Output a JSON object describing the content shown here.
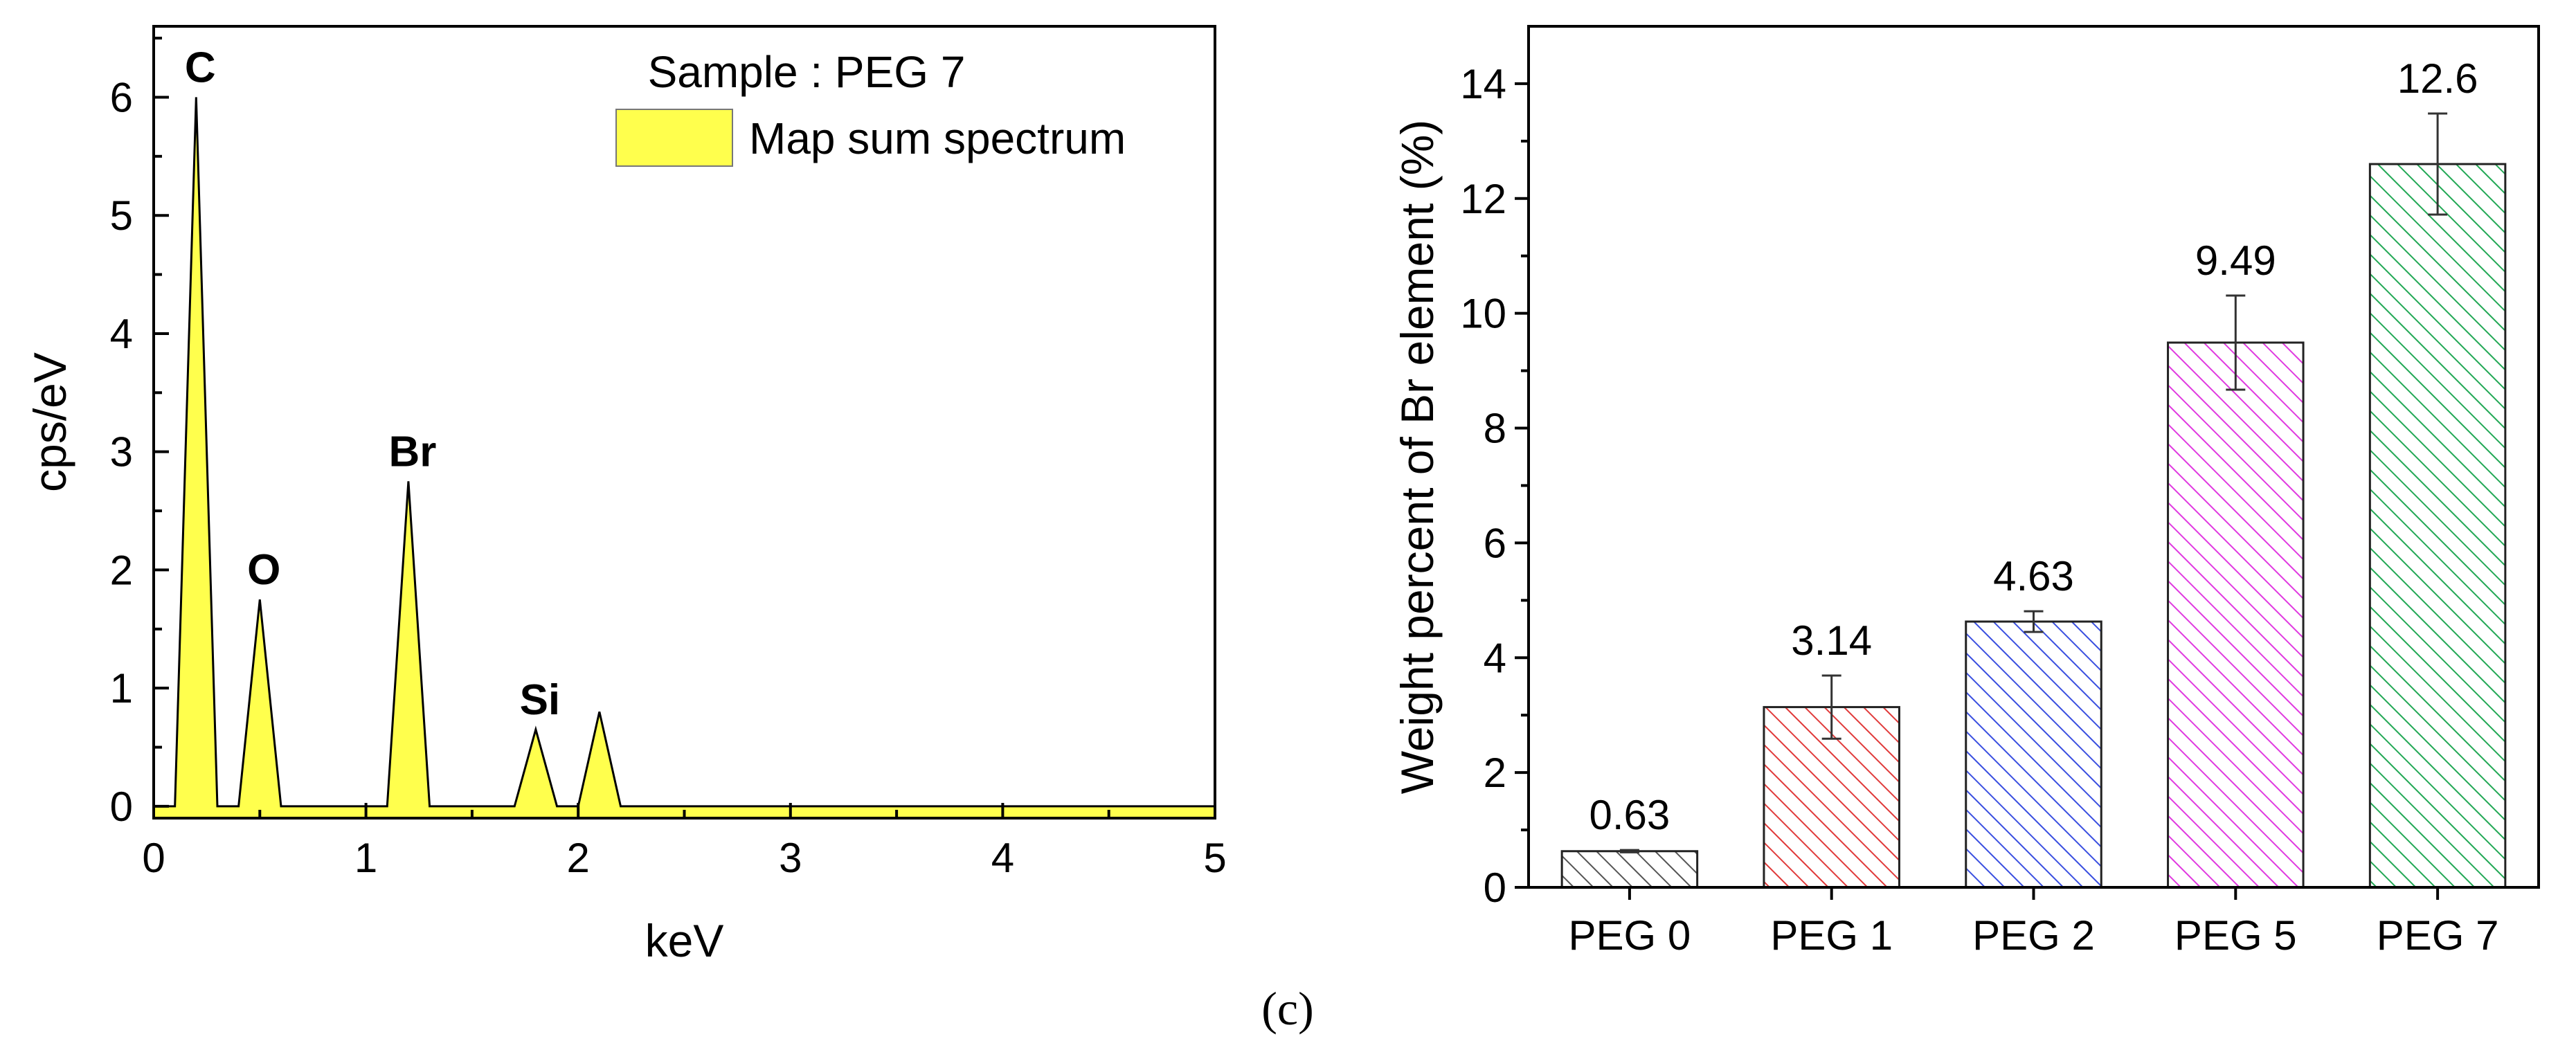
{
  "chart_data": [
    {
      "type": "area",
      "title": "",
      "xlabel": "keV",
      "ylabel": "cps/eV",
      "xlim": [
        0,
        5
      ],
      "ylim": [
        -0.1,
        6.6
      ],
      "xticks": [
        "0",
        "1",
        "2",
        "3",
        "4",
        "5"
      ],
      "yticks": [
        "0",
        "1",
        "2",
        "3",
        "4",
        "5",
        "6"
      ],
      "legend": {
        "title": "Sample : PEG 7",
        "entries": [
          "Map sum spectrum"
        ],
        "position": "top-right"
      },
      "series": [
        {
          "name": "Map sum spectrum",
          "color": "#ffff4d",
          "points": [
            [
              0,
              0
            ],
            [
              0.1,
              0
            ],
            [
              0.2,
              6.0
            ],
            [
              0.3,
              0
            ],
            [
              0.4,
              0
            ],
            [
              0.5,
              1.75
            ],
            [
              0.6,
              0
            ],
            [
              1.1,
              0
            ],
            [
              1.2,
              2.75
            ],
            [
              1.3,
              0
            ],
            [
              1.7,
              0
            ],
            [
              1.8,
              0.65
            ],
            [
              1.9,
              0
            ],
            [
              2.0,
              0
            ],
            [
              2.1,
              0.8
            ],
            [
              2.2,
              0
            ],
            [
              5.0,
              0
            ]
          ]
        }
      ],
      "annotations": [
        {
          "text": "C",
          "x": 0.2,
          "y": 6.0
        },
        {
          "text": "O",
          "x": 0.5,
          "y": 1.75
        },
        {
          "text": "Br",
          "x": 1.2,
          "y": 2.75
        },
        {
          "text": "Si",
          "x": 1.8,
          "y": 0.65
        }
      ]
    },
    {
      "type": "bar",
      "title": "",
      "xlabel": "",
      "ylabel": "Weight percent of Br element (%)",
      "ylim": [
        0,
        15
      ],
      "yticks": [
        "0",
        "2",
        "4",
        "6",
        "8",
        "10",
        "12",
        "14"
      ],
      "categories": [
        "PEG 0",
        "PEG 1",
        "PEG 2",
        "PEG 5",
        "PEG 7"
      ],
      "values": [
        0.63,
        3.14,
        4.63,
        9.49,
        12.6
      ],
      "value_labels": [
        "0.63",
        "3.14",
        "4.63",
        "9.49",
        "12.6"
      ],
      "errors": [
        0.02,
        0.55,
        0.18,
        0.82,
        0.88
      ],
      "colors": [
        "#555555",
        "#e03a3a",
        "#3a4fe0",
        "#e03ae0",
        "#22a855"
      ]
    }
  ],
  "caption": "(c)"
}
